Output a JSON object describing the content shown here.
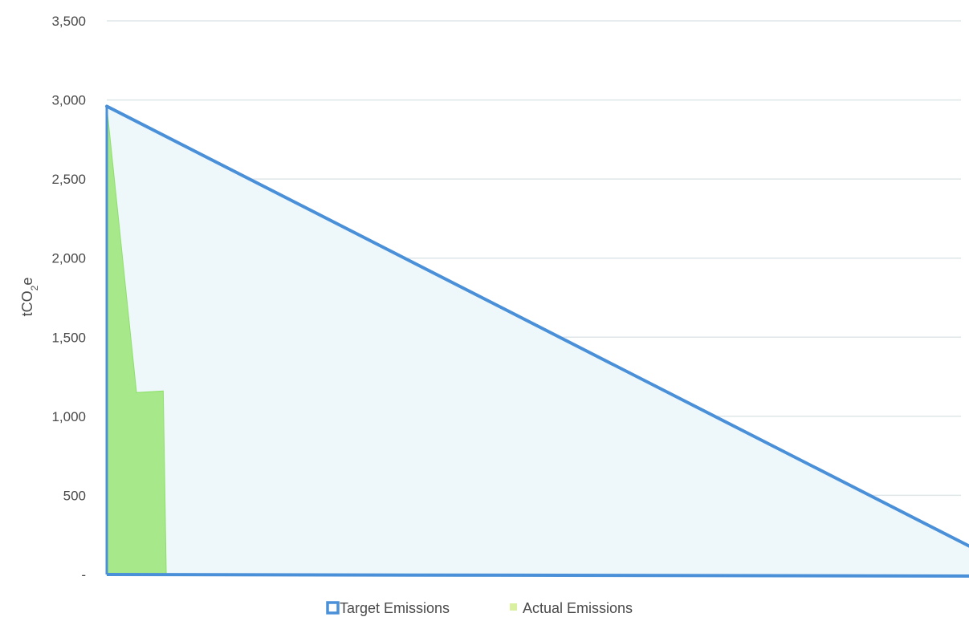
{
  "chart_data": {
    "type": "area",
    "ylabel": "tCO2e",
    "ylim": [
      0,
      3500
    ],
    "yticks": [
      {
        "value": 0,
        "label": "-"
      },
      {
        "value": 500,
        "label": "500"
      },
      {
        "value": 1000,
        "label": "1,000"
      },
      {
        "value": 1500,
        "label": "1,500"
      },
      {
        "value": 2000,
        "label": "2,000"
      },
      {
        "value": 2500,
        "label": "2,500"
      },
      {
        "value": 3000,
        "label": "3,000"
      },
      {
        "value": 3500,
        "label": "3,500"
      }
    ],
    "xlim": [
      0,
      29
    ],
    "grid": true,
    "legend_position": "bottom",
    "series": [
      {
        "name": "Target Emissions",
        "color": "#4a90d9",
        "fill": "#eef8fa",
        "x": [
          0,
          29
        ],
        "values": [
          2960,
          180
        ]
      },
      {
        "name": "Actual Emissions",
        "color": "#8ee06a",
        "fill": "#a6e88a",
        "x": [
          0,
          1,
          1.9,
          2
        ],
        "values": [
          2960,
          1150,
          1160,
          0
        ]
      }
    ]
  }
}
